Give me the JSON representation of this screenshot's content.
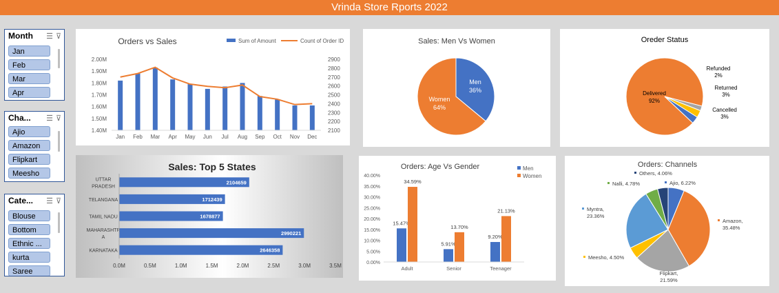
{
  "banner": {
    "title": "Vrinda Store Rports 2022"
  },
  "slicers": {
    "month": {
      "title": "Month",
      "items": [
        "Jan",
        "Feb",
        "Mar",
        "Apr"
      ]
    },
    "channel": {
      "title": "Cha...",
      "items": [
        "Ajio",
        "Amazon",
        "Flipkart",
        "Meesho"
      ]
    },
    "category": {
      "title": "Cate...",
      "items": [
        "Blouse",
        "Bottom",
        "Ethnic ...",
        "kurta",
        "Saree"
      ]
    }
  },
  "colors": {
    "blue": "#4472c4",
    "orange": "#ed7d31",
    "gray": "#a5a5a5",
    "gold": "#ffc000",
    "lightblue": "#5b9bd5",
    "green": "#70ad47",
    "navy": "#264478",
    "banner": "#ed7d31"
  },
  "chart_data": [
    {
      "id": "orders_vs_sales",
      "type": "bar",
      "title": "Orders vs Sales",
      "categories": [
        "Jan",
        "Feb",
        "Mar",
        "Apr",
        "May",
        "Jun",
        "Jul",
        "Aug",
        "Sep",
        "Oct",
        "Nov",
        "Dec"
      ],
      "series": [
        {
          "name": "Sum of Amount",
          "type": "bar",
          "axis": "left",
          "values": [
            1.82,
            1.88,
            1.93,
            1.83,
            1.79,
            1.75,
            1.77,
            1.8,
            1.69,
            1.66,
            1.61,
            1.61
          ]
        },
        {
          "name": "Count of Order ID",
          "type": "line",
          "axis": "right",
          "values": [
            2700,
            2740,
            2810,
            2690,
            2620,
            2595,
            2580,
            2610,
            2480,
            2450,
            2390,
            2400
          ]
        }
      ],
      "ylim": [
        1.4,
        2.0
      ],
      "yticks": [
        "2.00M",
        "1.90M",
        "1.80M",
        "1.70M",
        "1.60M",
        "1.50M",
        "1.40M"
      ],
      "y2lim": [
        2100,
        2900
      ],
      "y2ticks": [
        "2900",
        "2800",
        "2700",
        "2600",
        "2500",
        "2400",
        "2300",
        "2200",
        "2100"
      ],
      "legend_position": "top"
    },
    {
      "id": "sales_men_women",
      "type": "pie",
      "title": "Sales: Men Vs Women",
      "slices": [
        {
          "label": "Men",
          "value": 36,
          "pct_label": "36%"
        },
        {
          "label": "Women",
          "value": 64,
          "pct_label": "64%"
        }
      ]
    },
    {
      "id": "order_status",
      "type": "pie",
      "title": "Oreder Status",
      "slices": [
        {
          "label": "Delivered",
          "value": 92,
          "pct_label": "92%"
        },
        {
          "label": "Refunded",
          "value": 2,
          "pct_label": "2%"
        },
        {
          "label": "Returned",
          "value": 3,
          "pct_label": "3%"
        },
        {
          "label": "Cancelled",
          "value": 3,
          "pct_label": "3%"
        }
      ]
    },
    {
      "id": "top5_states",
      "type": "bar",
      "orientation": "horizontal",
      "title": "Sales: Top 5 States",
      "categories": [
        "UTTAR PRADESH",
        "TELANGANA",
        "TAMIL NADU",
        "MAHARASHTRA",
        "KARNATAKA"
      ],
      "category_lines": [
        [
          "UTTAR",
          "PRADESH"
        ],
        [
          "TELANGANA"
        ],
        [
          "TAMIL NADU"
        ],
        [
          "MAHARASHTR",
          "A"
        ],
        [
          "KARNATAKA"
        ]
      ],
      "values": [
        2104659,
        1712439,
        1678877,
        2990221,
        2646358
      ],
      "xlim": [
        0,
        3.5
      ],
      "xticks": [
        "0.0M",
        "0.5M",
        "1.0M",
        "1.5M",
        "2.0M",
        "2.5M",
        "3.0M",
        "3.5M"
      ]
    },
    {
      "id": "age_vs_gender",
      "type": "bar",
      "title": "Orders: Age Vs Gender",
      "categories": [
        "Adult",
        "Senior",
        "Teenager"
      ],
      "series": [
        {
          "name": "Men",
          "values": [
            15.47,
            5.91,
            9.2
          ],
          "labels": [
            "15.47%",
            "5.91%",
            "9.20%"
          ]
        },
        {
          "name": "Women",
          "values": [
            34.59,
            13.7,
            21.13
          ],
          "labels": [
            "34.59%",
            "13.70%",
            "21.13%"
          ]
        }
      ],
      "ylim": [
        0,
        40
      ],
      "yticks": [
        "40.00%",
        "35.00%",
        "30.00%",
        "25.00%",
        "20.00%",
        "15.00%",
        "10.00%",
        "5.00%",
        "0.00%"
      ],
      "legend_position": "top-right"
    },
    {
      "id": "orders_channels",
      "type": "pie",
      "title": "Orders: Channels",
      "slices": [
        {
          "label": "Ajio",
          "value": 6.22,
          "pct_label": "6.22%"
        },
        {
          "label": "Amazon",
          "value": 35.48,
          "pct_label": "35.48%"
        },
        {
          "label": "Flipkart",
          "value": 21.59,
          "pct_label": "21.59%"
        },
        {
          "label": "Meesho",
          "value": 4.5,
          "pct_label": "4.50%"
        },
        {
          "label": "Myntra",
          "value": 23.36,
          "pct_label": "23.36%"
        },
        {
          "label": "Nalli",
          "value": 4.78,
          "pct_label": "4.78%"
        },
        {
          "label": "Others",
          "value": 4.06,
          "pct_label": "4.06%"
        }
      ]
    }
  ]
}
